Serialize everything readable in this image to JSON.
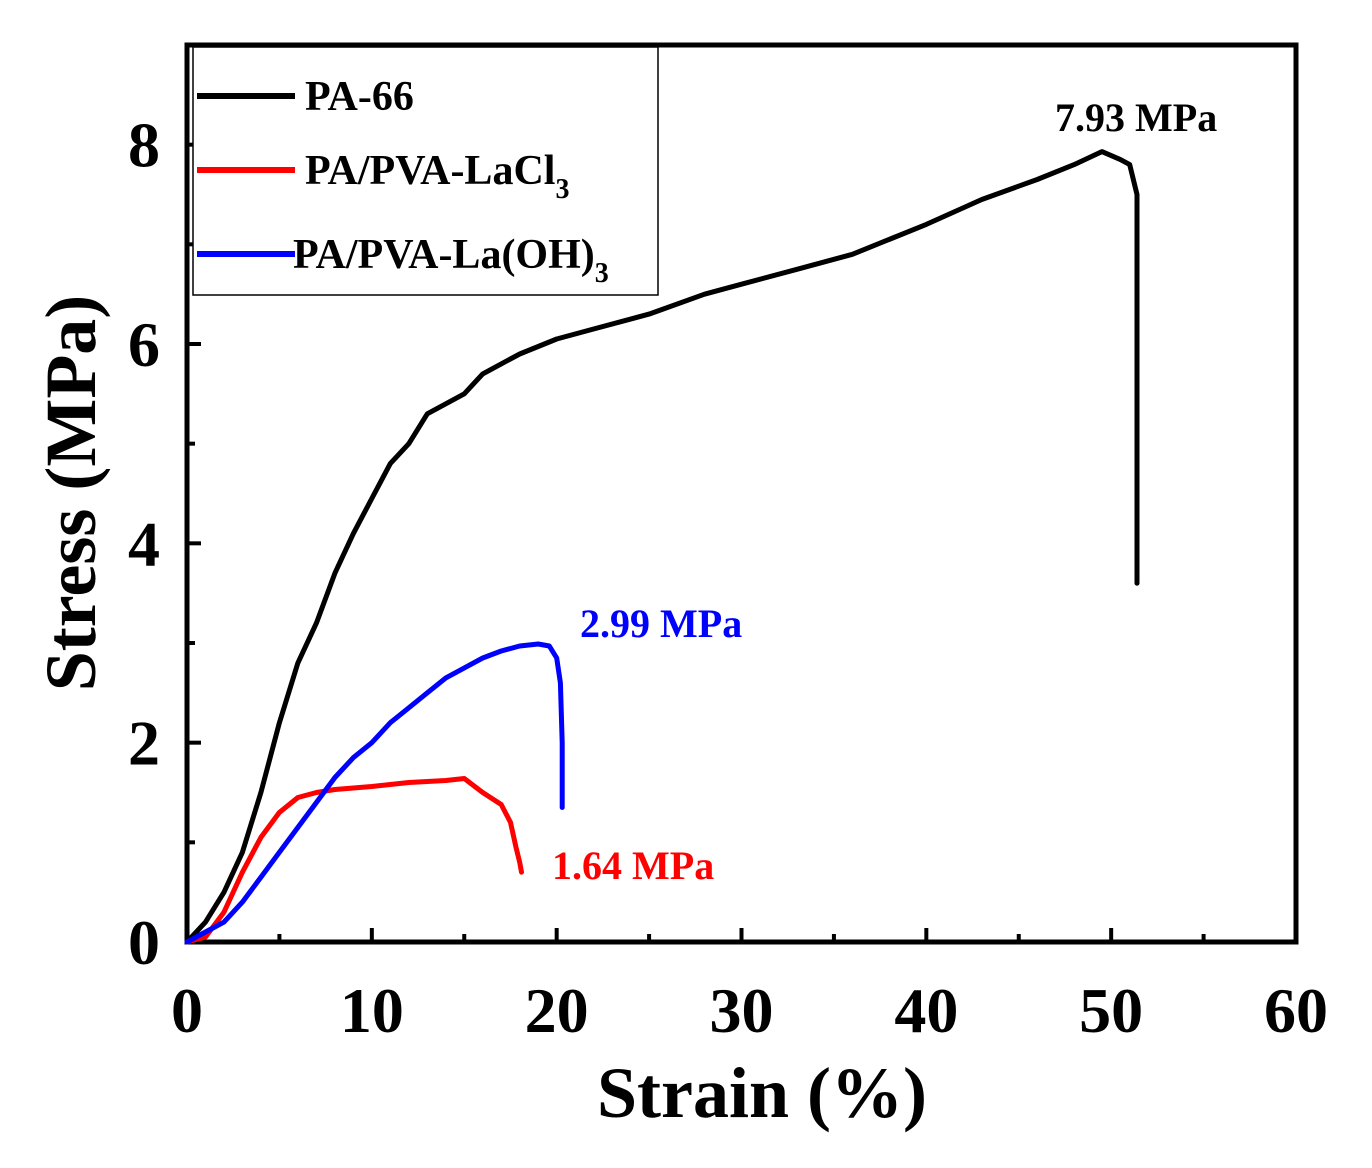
{
  "chart_data": {
    "type": "line",
    "title": "",
    "xlabel": "Strain (%)",
    "ylabel": "Stress (MPa)",
    "xlim": [
      0,
      60
    ],
    "ylim": [
      0,
      9
    ],
    "xticks": [
      0,
      10,
      20,
      30,
      40,
      50,
      60
    ],
    "yticks": [
      0,
      2,
      4,
      6,
      8
    ],
    "grid": false,
    "legend_position": "top-left",
    "series": [
      {
        "name": "PA-66",
        "label_main": "PA-66",
        "label_sub": "",
        "color": "#000000",
        "x": [
          0,
          1,
          2,
          3,
          4,
          5,
          6,
          7,
          8,
          9,
          10,
          11,
          12,
          13,
          14,
          15,
          16,
          17,
          18,
          20,
          22,
          25,
          28,
          30,
          33,
          36,
          40,
          43,
          46,
          48,
          49.5,
          50.5,
          51.0,
          51.4,
          51.4
        ],
        "y": [
          0,
          0.2,
          0.5,
          0.9,
          1.5,
          2.2,
          2.8,
          3.2,
          3.7,
          4.1,
          4.45,
          4.8,
          5.0,
          5.3,
          5.4,
          5.5,
          5.7,
          5.8,
          5.9,
          6.05,
          6.15,
          6.3,
          6.5,
          6.6,
          6.75,
          6.9,
          7.2,
          7.45,
          7.65,
          7.8,
          7.93,
          7.85,
          7.8,
          7.5,
          3.6
        ]
      },
      {
        "name": "PA/PVA-LaCl3",
        "label_main": "PA/PVA-LaCl",
        "label_sub": "3",
        "color": "#ff0000",
        "x": [
          0,
          1,
          2,
          3,
          4,
          5,
          6,
          7,
          8,
          10,
          12,
          14,
          15,
          16,
          17,
          17.5,
          17.8,
          18.0,
          18.1
        ],
        "y": [
          0,
          0.05,
          0.3,
          0.7,
          1.05,
          1.3,
          1.45,
          1.5,
          1.53,
          1.56,
          1.6,
          1.62,
          1.64,
          1.5,
          1.38,
          1.2,
          0.95,
          0.8,
          0.7
        ]
      },
      {
        "name": "PA/PVA-La(OH)3",
        "label_main": "PA/PVA-La(OH)",
        "label_sub": "3",
        "color": "#0000ff",
        "x": [
          0,
          1,
          2,
          3,
          4,
          5,
          6,
          7,
          8,
          9,
          10,
          11,
          12,
          13,
          14,
          15,
          16,
          17,
          18,
          19,
          19.6,
          20.0,
          20.2,
          20.3,
          20.3
        ],
        "y": [
          0,
          0.1,
          0.2,
          0.4,
          0.65,
          0.9,
          1.15,
          1.4,
          1.65,
          1.85,
          2.0,
          2.2,
          2.35,
          2.5,
          2.65,
          2.75,
          2.85,
          2.92,
          2.97,
          2.99,
          2.97,
          2.85,
          2.6,
          2.0,
          1.35
        ]
      }
    ],
    "annotations": [
      {
        "text": "7.93 MPa",
        "color": "#000000"
      },
      {
        "text": "2.99 MPa",
        "color": "#0000ff"
      },
      {
        "text": "1.64 MPa",
        "color": "#ff0000"
      }
    ]
  }
}
